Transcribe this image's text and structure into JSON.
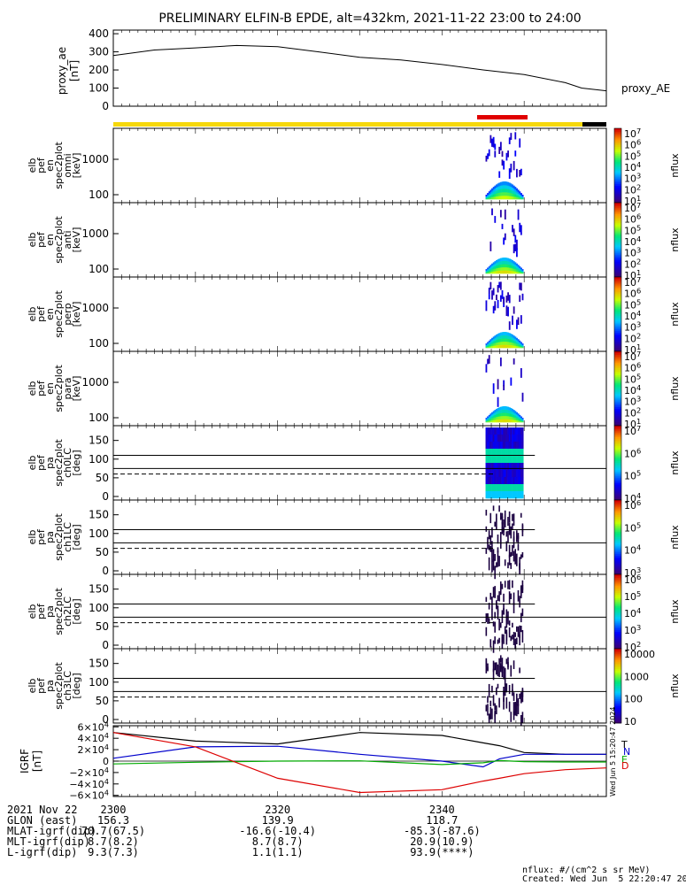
{
  "title": "PRELIMINARY ELFIN-B EPDE, alt=432km, 2021-11-22 23:00 to 24:00",
  "chart_data": [
    {
      "type": "line",
      "name": "proxy_ae",
      "ylabel": "proxy_ae [nT]",
      "legend": "proxy_AE",
      "yticks": [
        "400",
        "300",
        "200",
        "100",
        "0"
      ],
      "ylim": [
        0,
        420
      ],
      "x_minutes": [
        0,
        5,
        10,
        15,
        20,
        25,
        30,
        35,
        40,
        45,
        50,
        55,
        57,
        60
      ],
      "values": [
        280,
        310,
        322,
        335,
        328,
        300,
        270,
        255,
        230,
        200,
        175,
        130,
        100,
        85
      ]
    },
    {
      "type": "heatmap",
      "name": "elb_pef_en_spec2plot_omni",
      "ylabel": "elb pef en spec2plot omni [keV]",
      "yticks": [
        "1000",
        "100"
      ],
      "colorbar": {
        "label": "nflux",
        "ticks": [
          "10^7",
          "10^6",
          "10^5",
          "10^4",
          "10^3",
          "10^2",
          "10^1"
        ]
      }
    },
    {
      "type": "heatmap",
      "name": "elb_pef_en_spec2plot_anti",
      "ylabel": "elb pef en spec2plot anti [keV]",
      "yticks": [
        "1000",
        "100"
      ],
      "colorbar": {
        "label": "nflux",
        "ticks": [
          "10^7",
          "10^6",
          "10^5",
          "10^4",
          "10^3",
          "10^2",
          "10^1"
        ]
      }
    },
    {
      "type": "heatmap",
      "name": "elb_pef_en_spec2plot_perp",
      "ylabel": "elb pef en spec2plot perp [keV]",
      "yticks": [
        "1000",
        "100"
      ],
      "colorbar": {
        "label": "nflux",
        "ticks": [
          "10^7",
          "10^6",
          "10^5",
          "10^4",
          "10^3",
          "10^2",
          "10^1"
        ]
      }
    },
    {
      "type": "heatmap",
      "name": "elb_pef_en_spec2plot_para",
      "ylabel": "elb pef en spec2plot para [keV]",
      "yticks": [
        "1000",
        "100"
      ],
      "colorbar": {
        "label": "nflux",
        "ticks": [
          "10^7",
          "10^6",
          "10^5",
          "10^4",
          "10^3",
          "10^2",
          "10^1"
        ]
      }
    },
    {
      "type": "heatmap",
      "name": "elb_pef_pa_spec2plot_ch0LC",
      "ylabel": "elb pef pa spec2plot ch0LC [deg]",
      "yticks": [
        "150",
        "100",
        "50",
        "0"
      ],
      "colorbar": {
        "label": "nflux",
        "ticks": [
          "10^7",
          "10^6",
          "10^5",
          "10^4"
        ]
      }
    },
    {
      "type": "heatmap",
      "name": "elb_pef_pa_spec2plot_ch1LC",
      "ylabel": "elb pef pa spec2plot ch1LC [deg]",
      "yticks": [
        "150",
        "100",
        "50",
        "0"
      ],
      "colorbar": {
        "label": "nflux",
        "ticks": [
          "10^6",
          "10^5",
          "10^4",
          "10^3"
        ]
      }
    },
    {
      "type": "heatmap",
      "name": "elb_pef_pa_spec2plot_ch2LC",
      "ylabel": "elb pef pa spec2plot ch2LC [deg]",
      "yticks": [
        "150",
        "100",
        "50",
        "0"
      ],
      "colorbar": {
        "label": "nflux",
        "ticks": [
          "10^6",
          "10^5",
          "10^4",
          "10^3",
          "10^2"
        ]
      }
    },
    {
      "type": "heatmap",
      "name": "elb_pef_pa_spec2plot_ch3LC",
      "ylabel": "elb pef pa spec2plot ch3LC [deg]",
      "yticks": [
        "150",
        "100",
        "50",
        "0"
      ],
      "colorbar": {
        "label": "nflux",
        "ticks": [
          "10000",
          "1000",
          "100",
          "10"
        ]
      }
    },
    {
      "type": "line",
      "name": "IGRF",
      "ylabel": "IGRF [nT]",
      "yticks": [
        "6×10^4",
        "4×10^4",
        "2×10^4",
        "0",
        "−2×10^4",
        "−4×10^4",
        "−6×10^4"
      ],
      "ylim": [
        -62000,
        62000
      ],
      "series": [
        {
          "name": "T",
          "color": "#000000",
          "x_minutes": [
            0,
            10,
            20,
            30,
            40,
            45,
            47,
            50,
            55,
            60
          ],
          "values": [
            50000,
            35000,
            30000,
            50000,
            45000,
            32000,
            27000,
            15000,
            12000,
            12000
          ]
        },
        {
          "name": "N",
          "color": "#0000cc",
          "x_minutes": [
            0,
            10,
            20,
            30,
            40,
            45,
            47,
            50,
            55,
            60
          ],
          "values": [
            5000,
            25000,
            26000,
            12000,
            0,
            -10000,
            4000,
            12000,
            12000,
            12000
          ]
        },
        {
          "name": "E",
          "color": "#00aa00",
          "x_minutes": [
            0,
            10,
            20,
            30,
            40,
            45,
            47,
            50,
            55,
            60
          ],
          "values": [
            -5000,
            -2000,
            0,
            500,
            -6000,
            -3000,
            1000,
            -1000,
            -1500,
            -1500
          ]
        },
        {
          "name": "D",
          "color": "#dd0000",
          "x_minutes": [
            0,
            10,
            20,
            30,
            40,
            45,
            47,
            50,
            55,
            60
          ],
          "values": [
            50000,
            25000,
            -30000,
            -55000,
            -50000,
            -35000,
            -30000,
            -22000,
            -15000,
            -12000
          ]
        }
      ]
    }
  ],
  "side_stamp": "Wed Jun  5 15:20:47 2024",
  "orbit_table": {
    "rows": [
      {
        "label": "2021 Nov 22",
        "c1": "2300",
        "c2": "2320",
        "c3": "2340"
      },
      {
        "label": "GLON (east)",
        "c1": "156.3",
        "c2": "139.9",
        "c3": "118.7"
      },
      {
        "label": "MLAT-igrf(dip)",
        "c1": "70.7(67.5)",
        "c2": "-16.6(-10.4)",
        "c3": "-85.3(-87.6)"
      },
      {
        "label": "MLT-igrf(dip)",
        "c1": "8.7(8.2)",
        "c2": "8.7(8.7)",
        "c3": "20.9(10.9)"
      },
      {
        "label": "L-igrf(dip)",
        "c1": "9.3(7.3)",
        "c2": "1.1(1.1)",
        "c3": "93.9(****)"
      }
    ]
  },
  "footer": {
    "units": "nflux: #/(cm^2 s sr MeV)",
    "created": "Created: Wed Jun  5 22:20:47 2024"
  },
  "colors": {
    "axes": "#000000",
    "bar_yellow": "#f6d80a",
    "bar_red": "#e00000",
    "bar_black": "#000000"
  }
}
